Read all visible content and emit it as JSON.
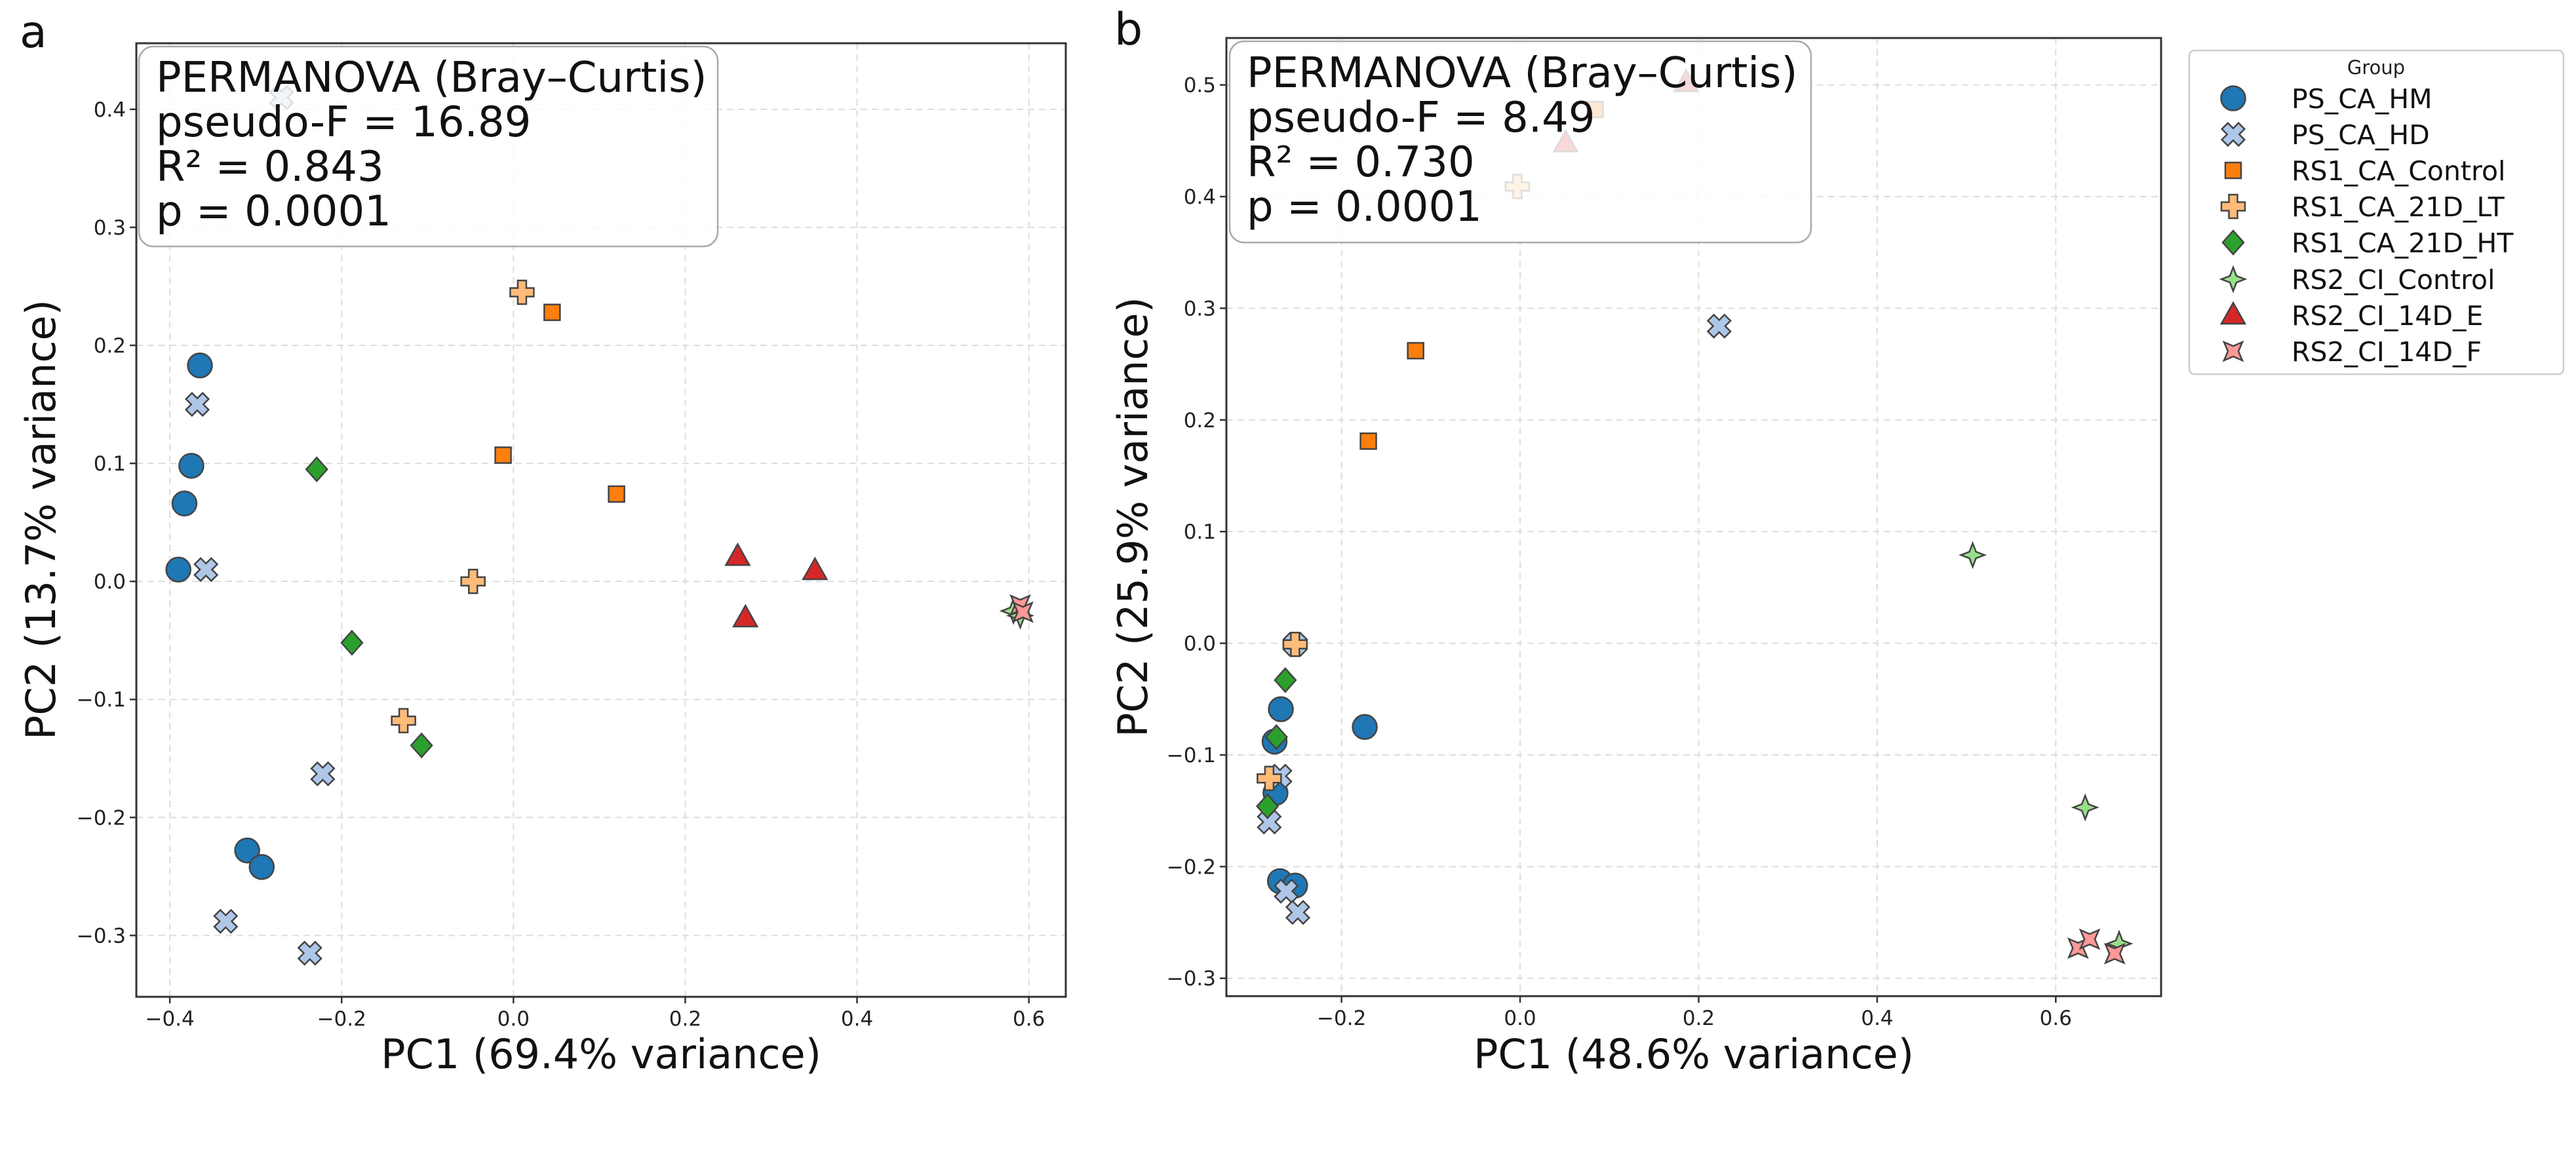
{
  "chart_data": [
    {
      "type": "scatter",
      "panel_label": "a",
      "xlabel": "PC1 (69.4% variance)",
      "ylabel": "PC2 (13.7% variance)",
      "xlim": [
        -0.439,
        0.643
      ],
      "ylim": [
        -0.352,
        0.456
      ],
      "xticks": [
        -0.4,
        -0.2,
        0.0,
        0.2,
        0.4,
        0.6
      ],
      "yticks": [
        -0.3,
        -0.2,
        -0.1,
        0.0,
        0.1,
        0.2,
        0.3,
        0.4
      ],
      "grid": true,
      "annotation": [
        "PERMANOVA (Bray–Curtis)",
        "pseudo-F = 16.89",
        "R² = 0.843",
        "p = 0.0001"
      ],
      "series": [
        {
          "name": "PS_CA_HM",
          "points": [
            [
              -0.365,
              0.183
            ],
            [
              -0.375,
              0.098
            ],
            [
              -0.383,
              0.066
            ],
            [
              -0.39,
              0.01
            ],
            [
              -0.31,
              -0.228
            ],
            [
              -0.293,
              -0.242
            ]
          ]
        },
        {
          "name": "PS_CA_HD",
          "points": [
            [
              -0.27,
              0.41
            ],
            [
              -0.368,
              0.15
            ],
            [
              -0.358,
              0.01
            ],
            [
              -0.222,
              -0.163
            ],
            [
              -0.335,
              -0.288
            ],
            [
              -0.237,
              -0.315
            ]
          ]
        },
        {
          "name": "RS1_CA_Control",
          "points": [
            [
              0.045,
              0.228
            ],
            [
              -0.012,
              0.107
            ],
            [
              0.12,
              0.074
            ]
          ]
        },
        {
          "name": "RS1_CA_21D_LT",
          "points": [
            [
              0.01,
              0.245
            ],
            [
              -0.047,
              0.0
            ],
            [
              -0.128,
              -0.118
            ]
          ]
        },
        {
          "name": "RS1_CA_21D_HT",
          "points": [
            [
              -0.229,
              0.095
            ],
            [
              -0.188,
              -0.052
            ],
            [
              -0.107,
              -0.139
            ]
          ]
        },
        {
          "name": "RS2_CI_Control",
          "points": [
            [
              0.582,
              -0.025
            ],
            [
              0.59,
              -0.029
            ]
          ]
        },
        {
          "name": "RS2_CI_14D_E",
          "points": [
            [
              0.261,
              0.021
            ],
            [
              0.351,
              0.009
            ],
            [
              0.27,
              -0.031
            ]
          ]
        },
        {
          "name": "RS2_CI_14D_F",
          "points": [
            [
              0.59,
              -0.02
            ],
            [
              0.593,
              -0.026
            ]
          ]
        }
      ]
    },
    {
      "type": "scatter",
      "panel_label": "b",
      "xlabel": "PC1 (48.6% variance)",
      "ylabel": "PC2 (25.9% variance)",
      "xlim": [
        -0.329,
        0.718
      ],
      "ylim": [
        -0.316,
        0.542
      ],
      "xticks": [
        -0.2,
        0.0,
        0.2,
        0.4,
        0.6
      ],
      "yticks": [
        -0.3,
        -0.2,
        -0.1,
        0.0,
        0.1,
        0.2,
        0.3,
        0.4,
        0.5
      ],
      "grid": true,
      "annotation": [
        "PERMANOVA (Bray–Curtis)",
        "pseudo-F = 8.49",
        "R² = 0.730",
        "p = 0.0001"
      ],
      "series": [
        {
          "name": "PS_CA_HM",
          "points": [
            [
              -0.268,
              -0.059
            ],
            [
              -0.174,
              -0.075
            ],
            [
              -0.275,
              -0.088
            ],
            [
              -0.274,
              -0.134
            ],
            [
              -0.269,
              -0.213
            ],
            [
              -0.252,
              -0.217
            ]
          ]
        },
        {
          "name": "PS_CA_HD",
          "points": [
            [
              0.223,
              0.284
            ],
            [
              -0.252,
              -0.001
            ],
            [
              -0.269,
              -0.119
            ],
            [
              -0.281,
              -0.16
            ],
            [
              -0.262,
              -0.222
            ],
            [
              -0.249,
              -0.241
            ]
          ]
        },
        {
          "name": "RS1_CA_Control",
          "points": [
            [
              -0.117,
              0.262
            ],
            [
              -0.17,
              0.181
            ],
            [
              0.084,
              0.478
            ]
          ]
        },
        {
          "name": "RS1_CA_21D_LT",
          "points": [
            [
              -0.252,
              -0.001
            ],
            [
              -0.281,
              -0.121
            ],
            [
              -0.003,
              0.409
            ]
          ]
        },
        {
          "name": "RS1_CA_21D_HT",
          "points": [
            [
              -0.263,
              -0.033
            ],
            [
              -0.273,
              -0.084
            ],
            [
              -0.283,
              -0.146
            ]
          ]
        },
        {
          "name": "RS2_CI_Control",
          "points": [
            [
              0.507,
              0.079
            ],
            [
              0.633,
              -0.147
            ],
            [
              0.671,
              -0.269
            ]
          ]
        },
        {
          "name": "RS2_CI_14D_E",
          "points": [
            [
              0.051,
              0.448
            ],
            [
              0.186,
              0.502
            ]
          ]
        },
        {
          "name": "RS2_CI_14D_F",
          "points": [
            [
              0.625,
              -0.273
            ],
            [
              0.638,
              -0.265
            ],
            [
              0.666,
              -0.278
            ]
          ]
        }
      ]
    }
  ],
  "legend": {
    "title": "Group",
    "placement": "outside-right",
    "entries": [
      {
        "label": "PS_CA_HM",
        "marker": "circle",
        "color": "#1f77b4"
      },
      {
        "label": "PS_CA_HD",
        "marker": "x-filled",
        "color": "#aec7e8"
      },
      {
        "label": "RS1_CA_Control",
        "marker": "square",
        "color": "#ff7f0e"
      },
      {
        "label": "RS1_CA_21D_LT",
        "marker": "plus-filled",
        "color": "#ffbb78"
      },
      {
        "label": "RS1_CA_21D_HT",
        "marker": "diamond",
        "color": "#2ca02c"
      },
      {
        "label": "RS2_CI_Control",
        "marker": "star4",
        "color": "#98df8a"
      },
      {
        "label": "RS2_CI_14D_E",
        "marker": "triangle",
        "color": "#d62728"
      },
      {
        "label": "RS2_CI_14D_F",
        "marker": "star4-rotated",
        "color": "#ff9896"
      }
    ]
  }
}
